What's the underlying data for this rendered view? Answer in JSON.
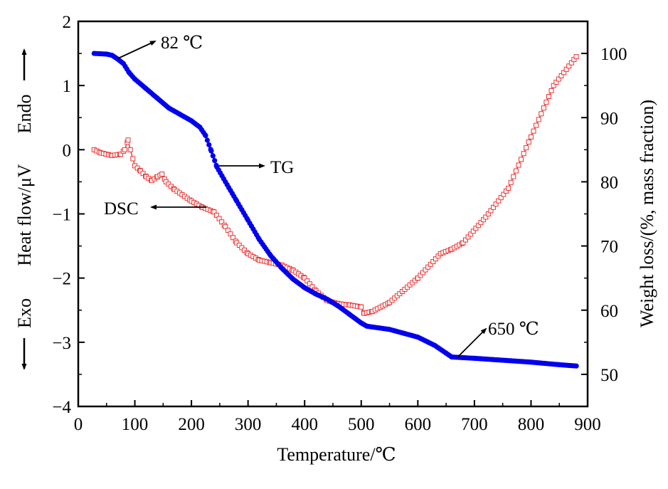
{
  "chart_data": {
    "type": "line",
    "title": "",
    "xlabel": "Temperature/℃",
    "ylabel_left": "Heat flow/μV",
    "ylabel_right": "Weight loss/(%, mass fraction)",
    "endo_label": "Endo",
    "exo_label": "Exo",
    "xlim": [
      0,
      900
    ],
    "ylim_left": [
      -4,
      2
    ],
    "ylim_right": [
      45,
      105
    ],
    "x_ticks": [
      "0",
      "100",
      "200",
      "300",
      "400",
      "500",
      "600",
      "700",
      "800",
      "900"
    ],
    "y_left_ticks": [
      "−4",
      "−3",
      "−2",
      "−1",
      "0",
      "1",
      "2"
    ],
    "y_right_ticks": [
      "50",
      "60",
      "70",
      "80",
      "90",
      "100"
    ],
    "grid": false,
    "series": [
      {
        "name": "TG",
        "axis": "right",
        "color": "#0000ee",
        "marker": "filled-circle",
        "points": [
          [
            28,
            100
          ],
          [
            50,
            99.9
          ],
          [
            60,
            99.7
          ],
          [
            70,
            99.1
          ],
          [
            80,
            98.4
          ],
          [
            90,
            97.0
          ],
          [
            100,
            96.0
          ],
          [
            120,
            94.5
          ],
          [
            140,
            93.0
          ],
          [
            160,
            91.5
          ],
          [
            180,
            90.5
          ],
          [
            200,
            89.5
          ],
          [
            215,
            88.5
          ],
          [
            225,
            87.2
          ],
          [
            235,
            84.8
          ],
          [
            245,
            82.3
          ],
          [
            260,
            80.0
          ],
          [
            280,
            77.0
          ],
          [
            300,
            74.0
          ],
          [
            320,
            71.0
          ],
          [
            340,
            68.5
          ],
          [
            360,
            66.5
          ],
          [
            380,
            64.8
          ],
          [
            400,
            63.5
          ],
          [
            420,
            62.5
          ],
          [
            440,
            61.7
          ],
          [
            460,
            60.6
          ],
          [
            480,
            59.3
          ],
          [
            500,
            58.0
          ],
          [
            510,
            57.5
          ],
          [
            550,
            57.0
          ],
          [
            600,
            55.8
          ],
          [
            630,
            54.5
          ],
          [
            650,
            53.3
          ],
          [
            660,
            52.7
          ],
          [
            700,
            52.5
          ],
          [
            750,
            52.2
          ],
          [
            800,
            51.9
          ],
          [
            850,
            51.5
          ],
          [
            880,
            51.3
          ]
        ]
      },
      {
        "name": "DSC",
        "axis": "left",
        "color": "#ee3333",
        "marker": "open-square",
        "points": [
          [
            28,
            0.0
          ],
          [
            40,
            -0.05
          ],
          [
            60,
            -0.09
          ],
          [
            75,
            -0.07
          ],
          [
            82,
            0.0
          ],
          [
            88,
            0.15
          ],
          [
            92,
            0.0
          ],
          [
            100,
            -0.25
          ],
          [
            110,
            -0.33
          ],
          [
            120,
            -0.42
          ],
          [
            130,
            -0.48
          ],
          [
            140,
            -0.42
          ],
          [
            148,
            -0.38
          ],
          [
            155,
            -0.5
          ],
          [
            170,
            -0.62
          ],
          [
            200,
            -0.8
          ],
          [
            220,
            -0.9
          ],
          [
            240,
            -0.97
          ],
          [
            260,
            -1.2
          ],
          [
            280,
            -1.45
          ],
          [
            300,
            -1.62
          ],
          [
            320,
            -1.72
          ],
          [
            340,
            -1.76
          ],
          [
            360,
            -1.8
          ],
          [
            380,
            -1.88
          ],
          [
            400,
            -2.0
          ],
          [
            420,
            -2.2
          ],
          [
            440,
            -2.35
          ],
          [
            460,
            -2.4
          ],
          [
            480,
            -2.42
          ],
          [
            500,
            -2.45
          ],
          [
            505,
            -2.55
          ],
          [
            520,
            -2.52
          ],
          [
            550,
            -2.38
          ],
          [
            600,
            -2.0
          ],
          [
            640,
            -1.62
          ],
          [
            660,
            -1.55
          ],
          [
            680,
            -1.45
          ],
          [
            720,
            -1.05
          ],
          [
            760,
            -0.6
          ],
          [
            800,
            0.2
          ],
          [
            840,
            1.0
          ],
          [
            880,
            1.45
          ]
        ]
      }
    ],
    "annotations": [
      {
        "text": "82 ℃"
      },
      {
        "text": "TG"
      },
      {
        "text": "DSC"
      },
      {
        "text": "650 ℃"
      }
    ]
  }
}
